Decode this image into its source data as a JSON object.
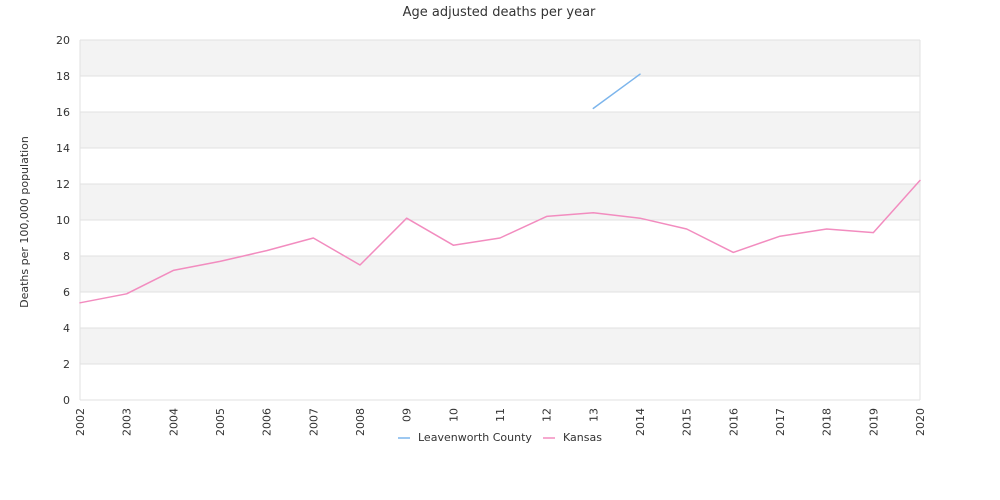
{
  "chart_data": {
    "type": "line",
    "title": "Age adjusted deaths per year",
    "xlabel": "",
    "ylabel": "Deaths per 100,000 population",
    "ylim": [
      0,
      20
    ],
    "yticks": [
      "0",
      "2",
      "4",
      "6",
      "8",
      "10",
      "12",
      "14",
      "16",
      "18",
      "20"
    ],
    "categories": [
      "2002",
      "2003",
      "2004",
      "2005",
      "2006",
      "2007",
      "2008",
      "09",
      "10",
      "11",
      "12",
      "13",
      "2014",
      "2015",
      "2016",
      "2017",
      "2018",
      "2019",
      "2020"
    ],
    "grid": true,
    "legend_position": "bottom",
    "series": [
      {
        "name": "Leavenworth County",
        "color": "#7cb5ec",
        "values": [
          null,
          null,
          null,
          null,
          null,
          null,
          null,
          null,
          null,
          null,
          null,
          16.2,
          18.1,
          null,
          null,
          null,
          null,
          null,
          null
        ]
      },
      {
        "name": "Kansas",
        "color": "#f28cbf",
        "values": [
          5.4,
          5.9,
          7.2,
          7.7,
          8.3,
          9.0,
          7.5,
          10.1,
          8.6,
          9.0,
          10.2,
          10.4,
          10.1,
          9.5,
          8.2,
          9.1,
          9.5,
          9.3,
          12.2
        ]
      }
    ]
  }
}
